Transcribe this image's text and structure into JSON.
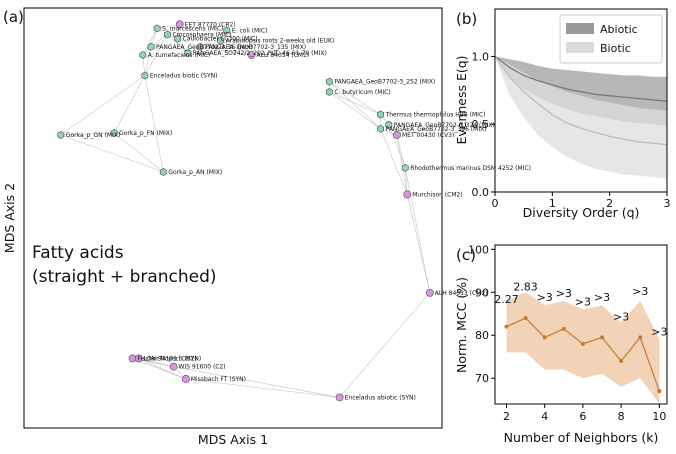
{
  "figure": {
    "panel_a_label": "(a)",
    "panel_b_label": "(b)",
    "panel_c_label": "(c)"
  },
  "chart_data": [
    {
      "id": "a",
      "type": "scatter",
      "title": "",
      "xlabel": "MDS Axis 1",
      "ylabel": "MDS Axis 2",
      "annotation_line1": "Fatty acids",
      "annotation_line2": "(straight + branched)",
      "xlim": [
        0,
        100
      ],
      "ylim": [
        0,
        100
      ],
      "points": [
        {
          "label": "S. marcescens (MIC)",
          "x": 31.5,
          "y": 96.0,
          "group": "biotic"
        },
        {
          "label": "EET 87770 (CR2)",
          "x": 37.0,
          "y": 97.0,
          "group": "abiotic"
        },
        {
          "label": "E. coli (MIC)",
          "x": 48.5,
          "y": 95.5,
          "group": "biotic"
        },
        {
          "label": "Crocosphaera (MIC)",
          "x": 34.0,
          "y": 94.5,
          "group": "biotic"
        },
        {
          "label": "Caulobacter LC300 (MIC)",
          "x": 36.5,
          "y": 93.5,
          "group": "biotic"
        },
        {
          "label": "Arabidopsis roots 2-weeks old (EUK)",
          "x": 47.0,
          "y": 93.0,
          "group": "biotic"
        },
        {
          "label": "PANGAEA_GeoB7702-3_15 (MIX)",
          "x": 30.0,
          "y": 91.5,
          "group": "biotic"
        },
        {
          "label": "PANGAEA_GeoB7702-3_135 (MIX)",
          "x": 42.0,
          "y": 91.5,
          "group": "biotic"
        },
        {
          "label": "A. tumefaciens (MIC)",
          "x": 28.0,
          "y": 89.5,
          "group": "biotic"
        },
        {
          "label": "PANGAEA_SO242/2_202_PUC-46-61-79 (MIX)",
          "x": 39.0,
          "y": 90.0,
          "group": "biotic"
        },
        {
          "label": "ALH 84034 (CM1)",
          "x": 54.5,
          "y": 89.5,
          "group": "abiotic"
        },
        {
          "label": "Enceladus biotic (SYN)",
          "x": 28.5,
          "y": 84.5,
          "group": "biotic"
        },
        {
          "label": "PANGAEA_GeoB7702-3_252 (MIX)",
          "x": 73.5,
          "y": 83.0,
          "group": "biotic"
        },
        {
          "label": "C. butyricum (MIC)",
          "x": 73.5,
          "y": 80.5,
          "group": "biotic"
        },
        {
          "label": "Gorka_p_FN (MIX)",
          "x": 21.0,
          "y": 70.5,
          "group": "biotic"
        },
        {
          "label": "Gorka_p_GN (MIX)",
          "x": 8.0,
          "y": 70.0,
          "group": "biotic"
        },
        {
          "label": "Thermus thermophilus HB8 (MIC)",
          "x": 86.0,
          "y": 75.0,
          "group": "biotic"
        },
        {
          "label": "PANGAEA_GeoB7702-3_324 (MIX)",
          "x": 88.0,
          "y": 72.5,
          "group": "biotic"
        },
        {
          "label": "PANGAEA_GeoB7702-3_396 (MIX)",
          "x": 86.0,
          "y": 71.5,
          "group": "biotic"
        },
        {
          "label": "MET 00430 (CV3)",
          "x": 90.0,
          "y": 70.0,
          "group": "abiotic"
        },
        {
          "label": "Rhodothermus marinus DSM 4252 (MIC)",
          "x": 92.0,
          "y": 62.0,
          "group": "biotic"
        },
        {
          "label": "Gorka_p_AN (MIX)",
          "x": 33.0,
          "y": 61.0,
          "group": "biotic"
        },
        {
          "label": "Murchison (CM2)",
          "x": 92.5,
          "y": 55.5,
          "group": "abiotic"
        },
        {
          "label": "ALH 84033 (CM2)",
          "x": 98.0,
          "y": 31.5,
          "group": "abiotic"
        },
        {
          "label": "Fischer-Tropsch (SYN)",
          "x": 25.5,
          "y": 15.5,
          "group": "abiotic"
        },
        {
          "label": "LON 94101 (CM2)",
          "x": 27.0,
          "y": 15.5,
          "group": "abiotic"
        },
        {
          "label": "WIS 91600 (C2)",
          "x": 35.5,
          "y": 13.5,
          "group": "abiotic"
        },
        {
          "label": "Missbach FT (SYN)",
          "x": 38.5,
          "y": 10.5,
          "group": "abiotic"
        },
        {
          "label": "Enceladus abiotic (SYN)",
          "x": 76.0,
          "y": 6.0,
          "group": "abiotic"
        }
      ]
    },
    {
      "id": "b",
      "type": "line",
      "xlabel": "Diversity Order (q)",
      "ylabel": "Evenness E(q)",
      "xlim": [
        0,
        3
      ],
      "ylim": [
        0,
        1.35
      ],
      "xticks": [
        0,
        1,
        2,
        3
      ],
      "yticks": [
        0.0,
        0.5,
        1.0
      ],
      "legend_position": "top-right",
      "x": [
        0,
        0.25,
        0.5,
        0.75,
        1.0,
        1.25,
        1.5,
        1.75,
        2.0,
        2.25,
        2.5,
        2.75,
        3.0
      ],
      "series": [
        {
          "name": "Abiotic",
          "color": "#7a7a7a",
          "band_color": "#aaaaaa",
          "values": [
            1.0,
            0.92,
            0.86,
            0.82,
            0.79,
            0.76,
            0.74,
            0.72,
            0.71,
            0.7,
            0.69,
            0.68,
            0.67
          ],
          "lower": [
            1.0,
            0.85,
            0.76,
            0.7,
            0.65,
            0.61,
            0.58,
            0.56,
            0.54,
            0.52,
            0.51,
            0.5,
            0.49
          ],
          "upper": [
            1.0,
            0.98,
            0.96,
            0.93,
            0.91,
            0.9,
            0.89,
            0.88,
            0.87,
            0.86,
            0.86,
            0.85,
            0.85
          ]
        },
        {
          "name": "Biotic",
          "color": "#bdbdbd",
          "band_color": "#dddddd",
          "values": [
            1.0,
            0.85,
            0.74,
            0.65,
            0.57,
            0.51,
            0.47,
            0.44,
            0.41,
            0.39,
            0.37,
            0.36,
            0.35
          ],
          "lower": [
            1.0,
            0.72,
            0.55,
            0.42,
            0.33,
            0.26,
            0.21,
            0.17,
            0.15,
            0.13,
            0.12,
            0.11,
            0.1
          ],
          "upper": [
            1.0,
            0.94,
            0.88,
            0.82,
            0.78,
            0.74,
            0.71,
            0.68,
            0.66,
            0.64,
            0.62,
            0.61,
            0.6
          ]
        }
      ]
    },
    {
      "id": "c",
      "type": "line",
      "xlabel": "Number of Neighbors (k)",
      "ylabel": "Norm. MCC (%)",
      "xlim": [
        1.4,
        10.4
      ],
      "ylim": [
        64,
        101
      ],
      "xticks": [
        2,
        4,
        6,
        8,
        10
      ],
      "yticks": [
        70,
        80,
        90,
        100
      ],
      "color": "#c8792e",
      "band_color": "#f2d3b7",
      "x": [
        2,
        3,
        4,
        5,
        6,
        7,
        8,
        9,
        10
      ],
      "values": [
        82,
        84,
        79.5,
        81.5,
        78,
        79.5,
        74,
        79.5,
        67
      ],
      "lower": [
        76,
        76,
        72,
        72,
        70,
        71,
        68,
        70,
        64
      ],
      "upper": [
        88,
        90,
        87,
        88,
        86,
        87,
        83,
        88,
        79
      ],
      "point_labels": [
        "2.27",
        "2.83",
        ">3",
        ">3",
        ">3",
        ">3",
        ">3",
        ">3",
        ">3"
      ]
    }
  ]
}
